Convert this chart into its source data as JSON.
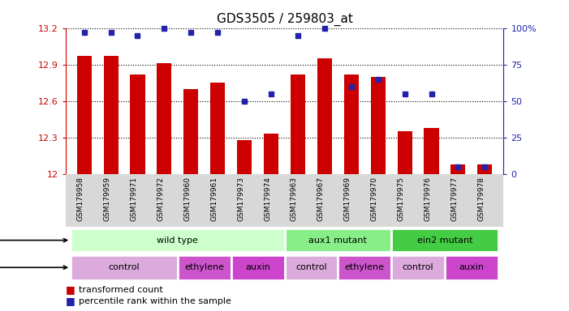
{
  "title": "GDS3505 / 259803_at",
  "samples": [
    "GSM179958",
    "GSM179959",
    "GSM179971",
    "GSM179972",
    "GSM179960",
    "GSM179961",
    "GSM179973",
    "GSM179974",
    "GSM179963",
    "GSM179967",
    "GSM179969",
    "GSM179970",
    "GSM179975",
    "GSM179976",
    "GSM179977",
    "GSM179978"
  ],
  "bar_values": [
    12.97,
    12.97,
    12.82,
    12.91,
    12.7,
    12.75,
    12.28,
    12.33,
    12.82,
    12.95,
    12.82,
    12.8,
    12.35,
    12.38,
    12.08,
    12.08
  ],
  "percentile_values_pct": [
    97,
    97,
    95,
    100,
    97,
    97,
    50,
    55,
    95,
    100,
    60,
    65,
    55,
    55,
    5,
    5
  ],
  "ylim_left": [
    12,
    13.2
  ],
  "ylim_right": [
    0,
    100
  ],
  "yticks_left": [
    12,
    12.3,
    12.6,
    12.9,
    13.2
  ],
  "yticks_right": [
    0,
    25,
    50,
    75,
    100
  ],
  "bar_color": "#CC0000",
  "percentile_color": "#2222AA",
  "genotype_groups": [
    {
      "label": "wild type",
      "start": 0,
      "end": 8,
      "color": "#ccffcc"
    },
    {
      "label": "aux1 mutant",
      "start": 8,
      "end": 12,
      "color": "#88ee88"
    },
    {
      "label": "ein2 mutant",
      "start": 12,
      "end": 16,
      "color": "#44cc44"
    }
  ],
  "agent_groups": [
    {
      "label": "control",
      "start": 0,
      "end": 4,
      "color": "#ddaadd"
    },
    {
      "label": "ethylene",
      "start": 4,
      "end": 6,
      "color": "#cc55cc"
    },
    {
      "label": "auxin",
      "start": 6,
      "end": 8,
      "color": "#cc44cc"
    },
    {
      "label": "control",
      "start": 8,
      "end": 10,
      "color": "#ddaadd"
    },
    {
      "label": "ethylene",
      "start": 10,
      "end": 12,
      "color": "#cc55cc"
    },
    {
      "label": "control",
      "start": 12,
      "end": 14,
      "color": "#ddaadd"
    },
    {
      "label": "auxin",
      "start": 14,
      "end": 16,
      "color": "#cc44cc"
    }
  ],
  "sample_bg_color": "#d8d8d8",
  "bg_color": "#ffffff",
  "legend_bar_label": "transformed count",
  "legend_pct_label": "percentile rank within the sample"
}
